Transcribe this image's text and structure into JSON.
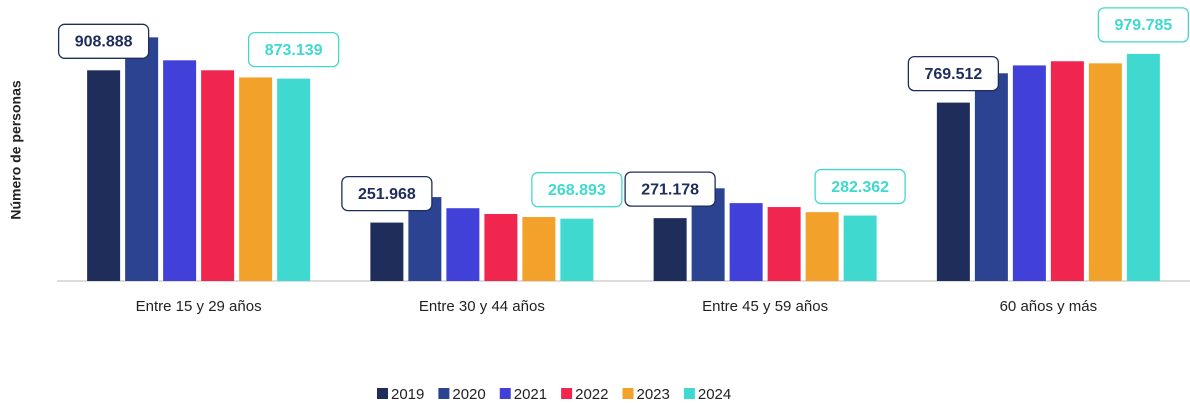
{
  "chart_data": {
    "type": "bar",
    "y_label": "Número de personas",
    "categories": [
      "Entre 15 y 29 años",
      "Entre 30 y 44 años",
      "Entre 45 y 59 años",
      "60 años y más"
    ],
    "ylim": [
      0,
      1100000
    ],
    "series": [
      {
        "name": "2019",
        "color": "#1f2d5a",
        "values": [
          908888,
          251968,
          271178,
          769512
        ],
        "value_labels": [
          "908.888",
          "251.968",
          "271.178",
          "769.512"
        ]
      },
      {
        "name": "2020",
        "color": "#2b4390",
        "values": [
          1051000,
          362000,
          400000,
          896000
        ]
      },
      {
        "name": "2021",
        "color": "#4141d9",
        "values": [
          952000,
          314000,
          336000,
          930000
        ]
      },
      {
        "name": "2022",
        "color": "#f0264f",
        "values": [
          909000,
          289000,
          319000,
          948000
        ]
      },
      {
        "name": "2023",
        "color": "#f2a22a",
        "values": [
          878000,
          276000,
          297000,
          939000
        ]
      },
      {
        "name": "2024",
        "color": "#40d9cf",
        "values": [
          873139,
          268893,
          282362,
          979785
        ],
        "value_labels": [
          "873.139",
          "268.893",
          "282.362",
          "979.785"
        ]
      }
    ]
  }
}
